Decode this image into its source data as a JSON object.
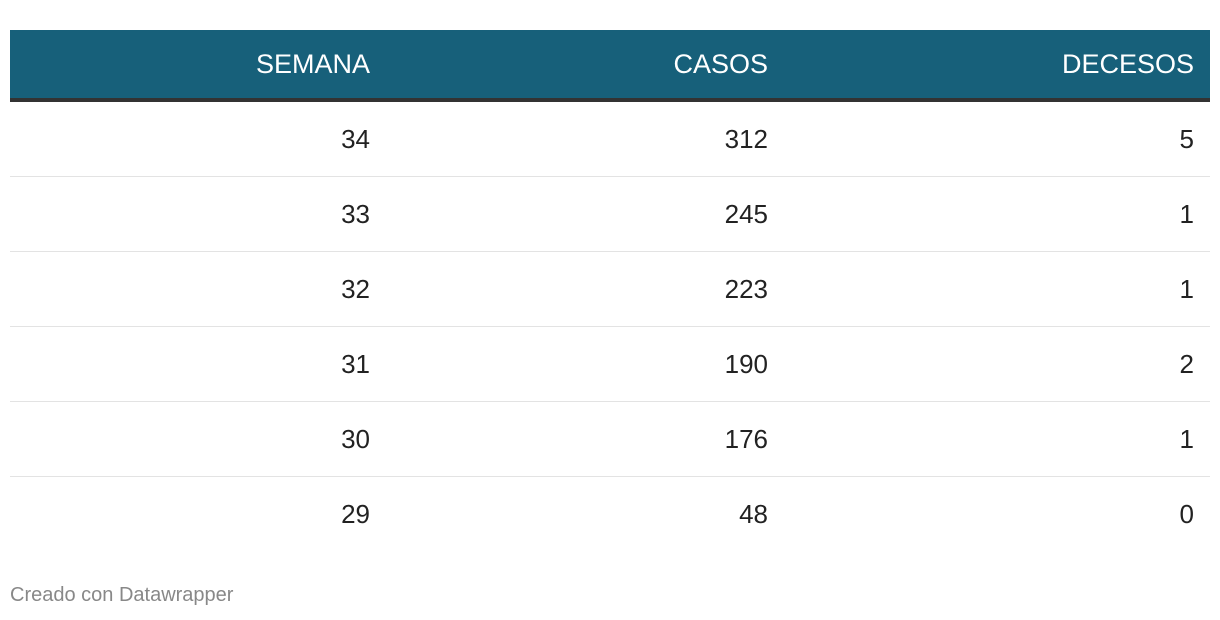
{
  "table": {
    "columns": [
      "SEMANA",
      "CASOS",
      "DECESOS"
    ],
    "rows": [
      [
        34,
        312,
        5
      ],
      [
        33,
        245,
        1
      ],
      [
        32,
        223,
        1
      ],
      [
        31,
        190,
        2
      ],
      [
        30,
        176,
        1
      ],
      [
        29,
        48,
        0
      ]
    ]
  },
  "footer": "Creado con Datawrapper"
}
